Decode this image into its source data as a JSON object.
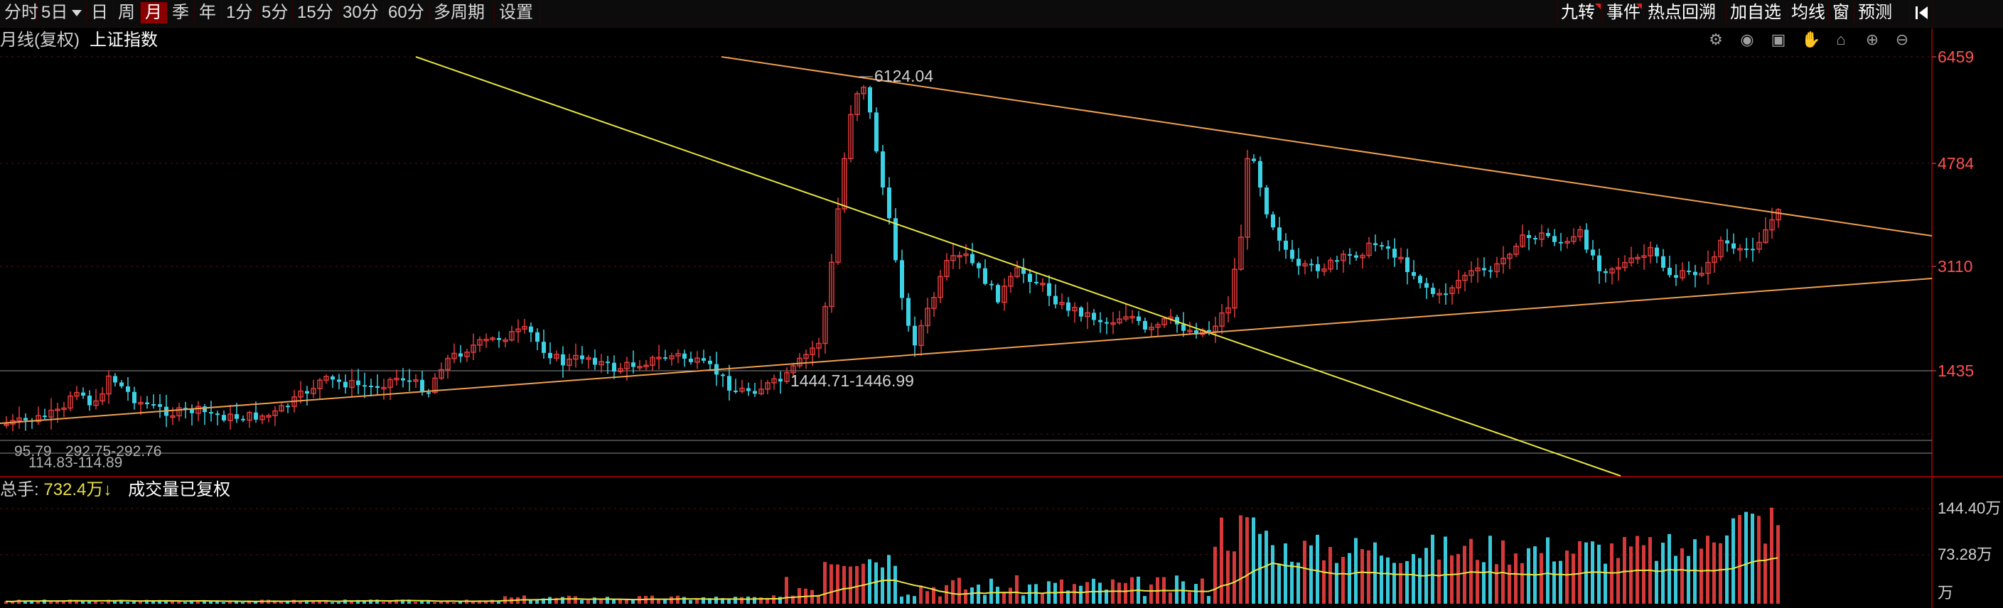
{
  "toolbar": {
    "left": [
      {
        "label": "分时",
        "active": false
      },
      {
        "label": "5日",
        "active": false,
        "dropdown": true
      },
      {
        "label": "日",
        "active": false
      },
      {
        "label": "周",
        "active": false
      },
      {
        "label": "月",
        "active": true
      },
      {
        "label": "季",
        "active": false
      },
      {
        "label": "年",
        "active": false
      },
      {
        "label": "1分",
        "active": false
      },
      {
        "label": "5分",
        "active": false
      },
      {
        "label": "15分",
        "active": false
      },
      {
        "label": "30分",
        "active": false
      },
      {
        "label": "60分",
        "active": false
      },
      {
        "label": "多周期",
        "active": false
      },
      {
        "label": "设置",
        "active": false
      }
    ],
    "right": [
      {
        "label": "九转",
        "marked": true
      },
      {
        "label": "事件",
        "marked": true
      },
      {
        "label": "热点回溯",
        "marked": false
      },
      {
        "label": "加自选",
        "marked": false
      },
      {
        "label": "均线",
        "marked": false
      },
      {
        "label": "窗",
        "marked": false
      },
      {
        "label": "预测",
        "marked": false
      }
    ],
    "collapse_icon": "skip-left-icon"
  },
  "chart_header": {
    "chart_type": "月线(复权)",
    "index_name": "上证指数"
  },
  "chart_tools": [
    "settings-icon",
    "eye-icon",
    "bag-icon",
    "hand-icon",
    "lock-icon",
    "zoom-in-icon",
    "zoom-out-icon"
  ],
  "colors": {
    "up": "#e03c3c",
    "down": "#3cd2e6",
    "trend_yellow": "#e8e640",
    "trend_orange": "#f0a050",
    "grid": "#5a1010",
    "axis_text": "#ff5050",
    "ref_line": "#8c8c8c"
  },
  "price_axis": {
    "labels": [
      "6459",
      "4784",
      "3110",
      "1435"
    ]
  },
  "annotations": {
    "peak": "6124.04",
    "low": "1444.71-1446.99",
    "bottom_1": "95.79",
    "bottom_2": "292.75-292.76",
    "bottom_3": "114.83-114.89"
  },
  "volume": {
    "label": "总手:",
    "value": "732.4万↓",
    "status": "成交量已复权",
    "axis_labels": [
      "144.40万",
      "73.28万",
      "万"
    ]
  },
  "chart_data": {
    "type": "candlestick",
    "y_axis_ticks": [
      6459,
      4784,
      3110,
      1435
    ],
    "peak": 6124.04,
    "volume_ticks": [
      144.4,
      73.28
    ],
    "volume_unit": "万"
  }
}
